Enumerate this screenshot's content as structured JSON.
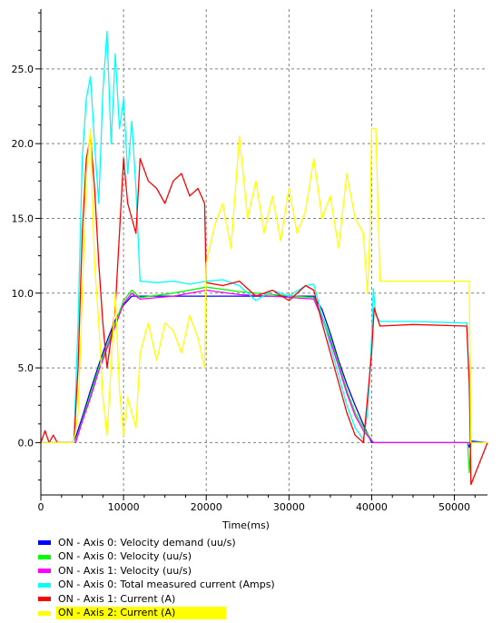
{
  "chart_data": {
    "type": "line",
    "xlabel": "Time(ms)",
    "ylabel": "",
    "xlim": [
      0,
      54000
    ],
    "ylim": [
      -3.5,
      29
    ],
    "x_ticks": [
      0,
      10000,
      20000,
      30000,
      40000,
      50000
    ],
    "x_tick_labels": [
      "0",
      "10000",
      "20000",
      "30000",
      "40000",
      "50000"
    ],
    "y_ticks": [
      0,
      5,
      10,
      15,
      20,
      25
    ],
    "y_tick_labels": [
      "0.0",
      "5.0",
      "10.0",
      "15.0",
      "20.0",
      "25.0"
    ],
    "grid": true,
    "legend_position": "bottom",
    "series": [
      {
        "name": "ON  - Axis 0: Velocity demand (uu/s)",
        "color": "#0000ff",
        "x": [
          0,
          4000,
          5000,
          6000,
          7000,
          8000,
          9000,
          10000,
          11000,
          12000,
          20000,
          28000,
          33000,
          34000,
          35000,
          36000,
          37000,
          38000,
          39000,
          40000,
          41000,
          51600,
          51800,
          52000,
          54000
        ],
        "y": [
          0,
          0,
          1.7,
          3.5,
          5.2,
          6.8,
          8.2,
          9.2,
          9.8,
          9.8,
          9.8,
          9.8,
          9.8,
          8.9,
          7.3,
          5.5,
          3.9,
          2.5,
          1.2,
          0,
          0,
          0,
          -0.3,
          0.1,
          0
        ]
      },
      {
        "name": "ON  - Axis 0: Velocity (uu/s)",
        "color": "#00ff00",
        "x": [
          0,
          4200,
          5000,
          6000,
          7000,
          8000,
          9000,
          10000,
          11000,
          12000,
          16000,
          20000,
          24000,
          28000,
          33000,
          34000,
          35000,
          36000,
          37000,
          38000,
          39000,
          40200,
          41000,
          51600,
          51800,
          52000,
          54000
        ],
        "y": [
          0,
          0,
          1.5,
          3.2,
          5.0,
          6.5,
          8.0,
          9.5,
          10.2,
          9.7,
          10.0,
          10.4,
          10.1,
          9.9,
          9.7,
          8.5,
          7.0,
          5.3,
          3.5,
          2.0,
          1.0,
          0,
          0,
          0,
          -2.0,
          0,
          0
        ]
      },
      {
        "name": "ON  - Axis 1: Velocity (uu/s)",
        "color": "#ff00ff",
        "x": [
          0,
          4200,
          5000,
          6000,
          7000,
          8000,
          9000,
          10000,
          11000,
          12000,
          16000,
          20000,
          24000,
          28000,
          33000,
          34000,
          35000,
          36000,
          37000,
          38000,
          39000,
          40200,
          41000,
          54000
        ],
        "y": [
          0,
          0,
          1.4,
          3.0,
          4.8,
          6.3,
          7.8,
          9.3,
          10.0,
          9.6,
          9.8,
          10.2,
          9.9,
          9.8,
          9.6,
          8.3,
          6.8,
          5.1,
          3.3,
          1.8,
          0.8,
          0,
          0,
          0
        ]
      },
      {
        "name": "ON  - Axis 0: Total measured current (Amps)",
        "color": "#00ffff",
        "x": [
          0,
          4000,
          4500,
          5000,
          5500,
          6000,
          6500,
          7000,
          7500,
          8000,
          8500,
          9000,
          9500,
          10000,
          10500,
          11000,
          11500,
          12000,
          14000,
          16000,
          18000,
          20000,
          22000,
          24000,
          26000,
          28000,
          30000,
          32000,
          33000,
          34000,
          35000,
          36000,
          37000,
          38000,
          39000,
          39500,
          40000,
          40200,
          40500,
          41000,
          45000,
          51500,
          51700,
          52000,
          54000
        ],
        "y": [
          0,
          0,
          8.0,
          19.0,
          23.0,
          24.5,
          20.0,
          16.0,
          23.5,
          27.5,
          20.0,
          26.0,
          21.0,
          23.0,
          18.0,
          21.5,
          17.0,
          10.8,
          10.7,
          10.8,
          10.6,
          10.8,
          10.9,
          10.5,
          9.5,
          10.2,
          9.8,
          10.5,
          10.6,
          8.5,
          6.5,
          4.5,
          2.5,
          1.0,
          0.2,
          2.0,
          7.0,
          10.3,
          8.5,
          8.1,
          8.1,
          8.0,
          5.0,
          0,
          0
        ]
      },
      {
        "name": "ON  - Axis 1: Current (A)",
        "color": "#ff0000",
        "x": [
          0,
          500,
          1000,
          1500,
          2000,
          3000,
          4000,
          4500,
          5000,
          5500,
          6000,
          6500,
          7000,
          7500,
          8000,
          8500,
          9000,
          9500,
          10000,
          10500,
          11000,
          11500,
          12000,
          13000,
          14000,
          15000,
          16000,
          17000,
          18000,
          19000,
          19800,
          20000,
          22000,
          24000,
          26000,
          28000,
          30000,
          32000,
          33000,
          34000,
          35000,
          36000,
          37000,
          38000,
          39000,
          39500,
          40000,
          40300,
          41000,
          45000,
          51500,
          51800,
          52000,
          54000
        ],
        "y": [
          0,
          0.8,
          0,
          0.5,
          0,
          0,
          0,
          5.0,
          14.0,
          19.0,
          20.5,
          17.0,
          12.0,
          8.0,
          5.0,
          7.0,
          9.0,
          14.0,
          19.0,
          16.0,
          15.0,
          14.0,
          19.0,
          17.5,
          17.0,
          16.0,
          17.5,
          18.0,
          16.5,
          17.0,
          16.0,
          10.7,
          10.5,
          10.8,
          9.8,
          10.2,
          9.5,
          10.5,
          10.2,
          8.0,
          6.0,
          4.0,
          2.0,
          0.5,
          0,
          3.0,
          6.0,
          9.0,
          7.8,
          7.9,
          7.8,
          4.0,
          -2.8,
          0
        ]
      },
      {
        "name": "ON  - Axis 2: Current (A)",
        "color": "#ffff00",
        "x": [
          0,
          4000,
          4500,
          5000,
          5500,
          6000,
          6500,
          7000,
          7500,
          8000,
          8500,
          9000,
          9500,
          10000,
          10500,
          11000,
          11500,
          12000,
          13000,
          14000,
          15000,
          16000,
          17000,
          18000,
          19000,
          19800,
          20000,
          21000,
          22000,
          23000,
          24000,
          25000,
          26000,
          27000,
          28000,
          29000,
          30000,
          31000,
          32000,
          33000,
          34000,
          35000,
          36000,
          37000,
          38000,
          39000,
          39500,
          39800,
          40000,
          40500,
          41000,
          45000,
          51500,
          51800,
          52000,
          54000
        ],
        "y": [
          0,
          0,
          2.0,
          10.0,
          18.0,
          21.0,
          12.0,
          8.0,
          3.0,
          0.5,
          5.0,
          10.0,
          3.5,
          0.5,
          3.0,
          2.0,
          1.0,
          6.0,
          8.0,
          5.5,
          8.0,
          7.5,
          6.0,
          8.5,
          7.0,
          5.0,
          12.0,
          14.5,
          16.0,
          13.0,
          20.5,
          15.0,
          17.5,
          14.0,
          16.5,
          13.5,
          17.0,
          14.0,
          15.5,
          19.0,
          15.0,
          16.5,
          13.0,
          18.0,
          15.0,
          14.0,
          10.0,
          14.0,
          21.0,
          21.0,
          10.8,
          10.8,
          10.8,
          10.8,
          0,
          0
        ]
      }
    ]
  },
  "legend": {
    "items": [
      {
        "label": "ON  - Axis 0: Velocity demand (uu/s)",
        "color": "#0000ff"
      },
      {
        "label": "ON  - Axis 0: Velocity (uu/s)",
        "color": "#00ff00"
      },
      {
        "label": "ON  - Axis 1: Velocity (uu/s)",
        "color": "#ff00ff"
      },
      {
        "label": "ON  - Axis 0: Total measured current (Amps)",
        "color": "#00ffff"
      },
      {
        "label": "ON  - Axis 1: Current (A)",
        "color": "#ff0000"
      },
      {
        "label": "ON  - Axis 2: Current (A)",
        "color": "#ffff00"
      }
    ],
    "selected_index": 5,
    "selected_color": "#ffff00"
  }
}
